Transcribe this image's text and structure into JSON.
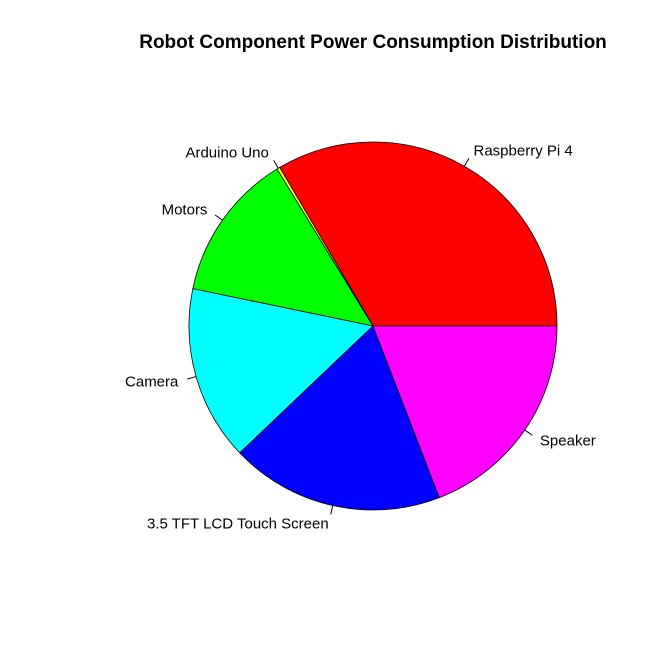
{
  "chart_data": {
    "type": "pie",
    "title": "Robot Component Power Consumption Distribution",
    "start_angle_deg": 0,
    "direction": "counterclockwise",
    "slices": [
      {
        "label": "Raspberry Pi 4",
        "value": 35.5,
        "color": "#FF0000"
      },
      {
        "label": "Arduino Uno",
        "value": 0.3,
        "color": "#FFFF00"
      },
      {
        "label": "Motors",
        "value": 13.8,
        "color": "#00FF00"
      },
      {
        "label": "Camera",
        "value": 16.3,
        "color": "#00FFFF"
      },
      {
        "label": "3.5 TFT LCD Touch Screen",
        "value": 19.9,
        "color": "#0000FF"
      },
      {
        "label": "Speaker",
        "value": 20.3,
        "color": "#FF00FF"
      }
    ]
  }
}
